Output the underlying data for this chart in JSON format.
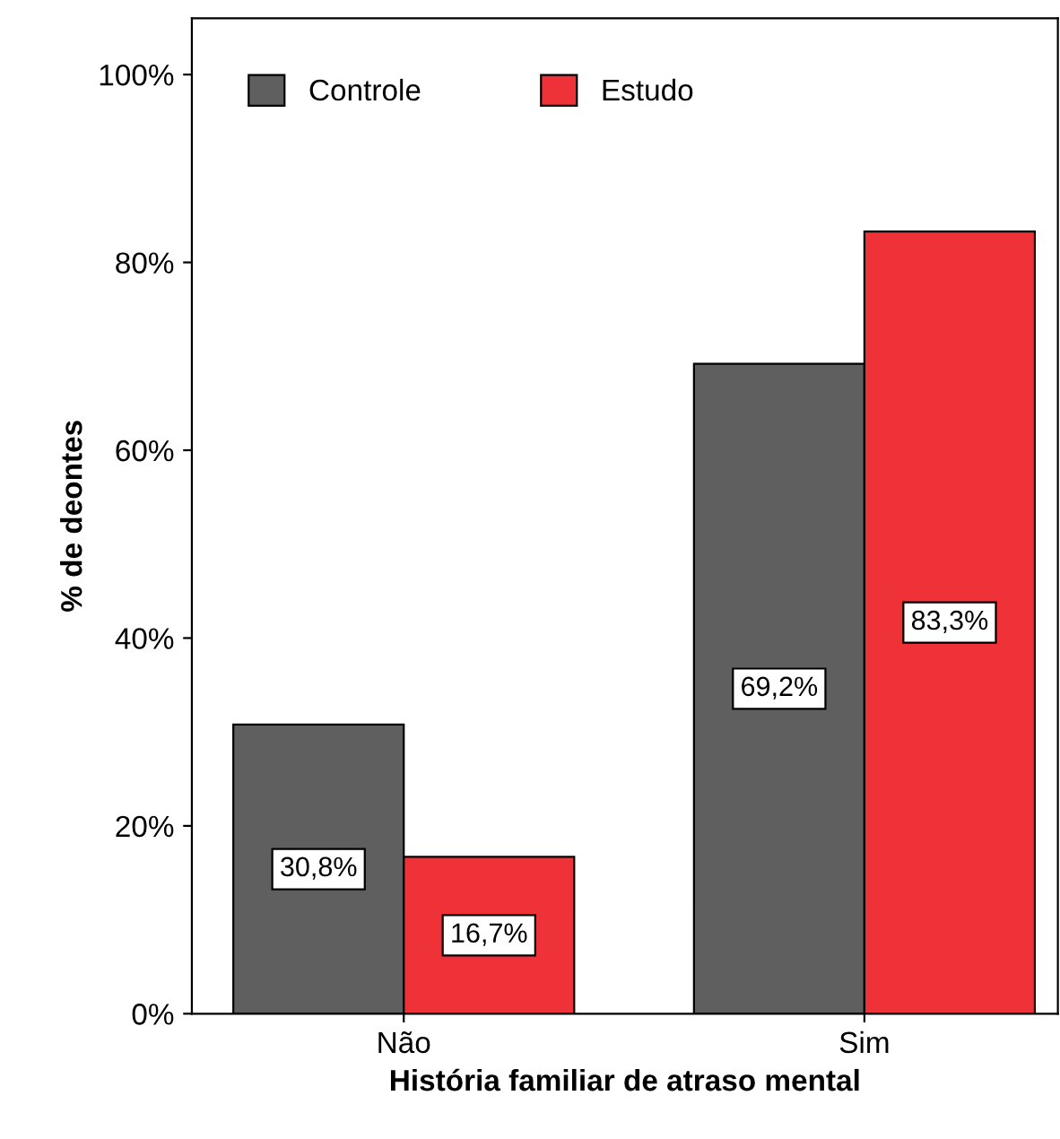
{
  "chart_data": {
    "type": "bar",
    "xlabel": "História familiar de atraso mental",
    "ylabel": "% de deontes",
    "categories": [
      "Não",
      "Sim"
    ],
    "series": [
      {
        "name": "Controle",
        "color": "#5f5f5f",
        "values": [
          30.8,
          69.2
        ],
        "value_labels": [
          "30,8%",
          "69,2%"
        ]
      },
      {
        "name": "Estudo",
        "color": "#ee3238",
        "values": [
          16.7,
          83.3
        ],
        "value_labels": [
          "16,7%",
          "83,3%"
        ]
      }
    ],
    "ylim": [
      0,
      106
    ],
    "yticks": [
      {
        "value": 0,
        "label": "0%"
      },
      {
        "value": 20,
        "label": "20%"
      },
      {
        "value": 40,
        "label": "40%"
      },
      {
        "value": 60,
        "label": "60%"
      },
      {
        "value": 80,
        "label": "80%"
      },
      {
        "value": 100,
        "label": "100%"
      }
    ],
    "grid": false,
    "legend": "top left"
  }
}
